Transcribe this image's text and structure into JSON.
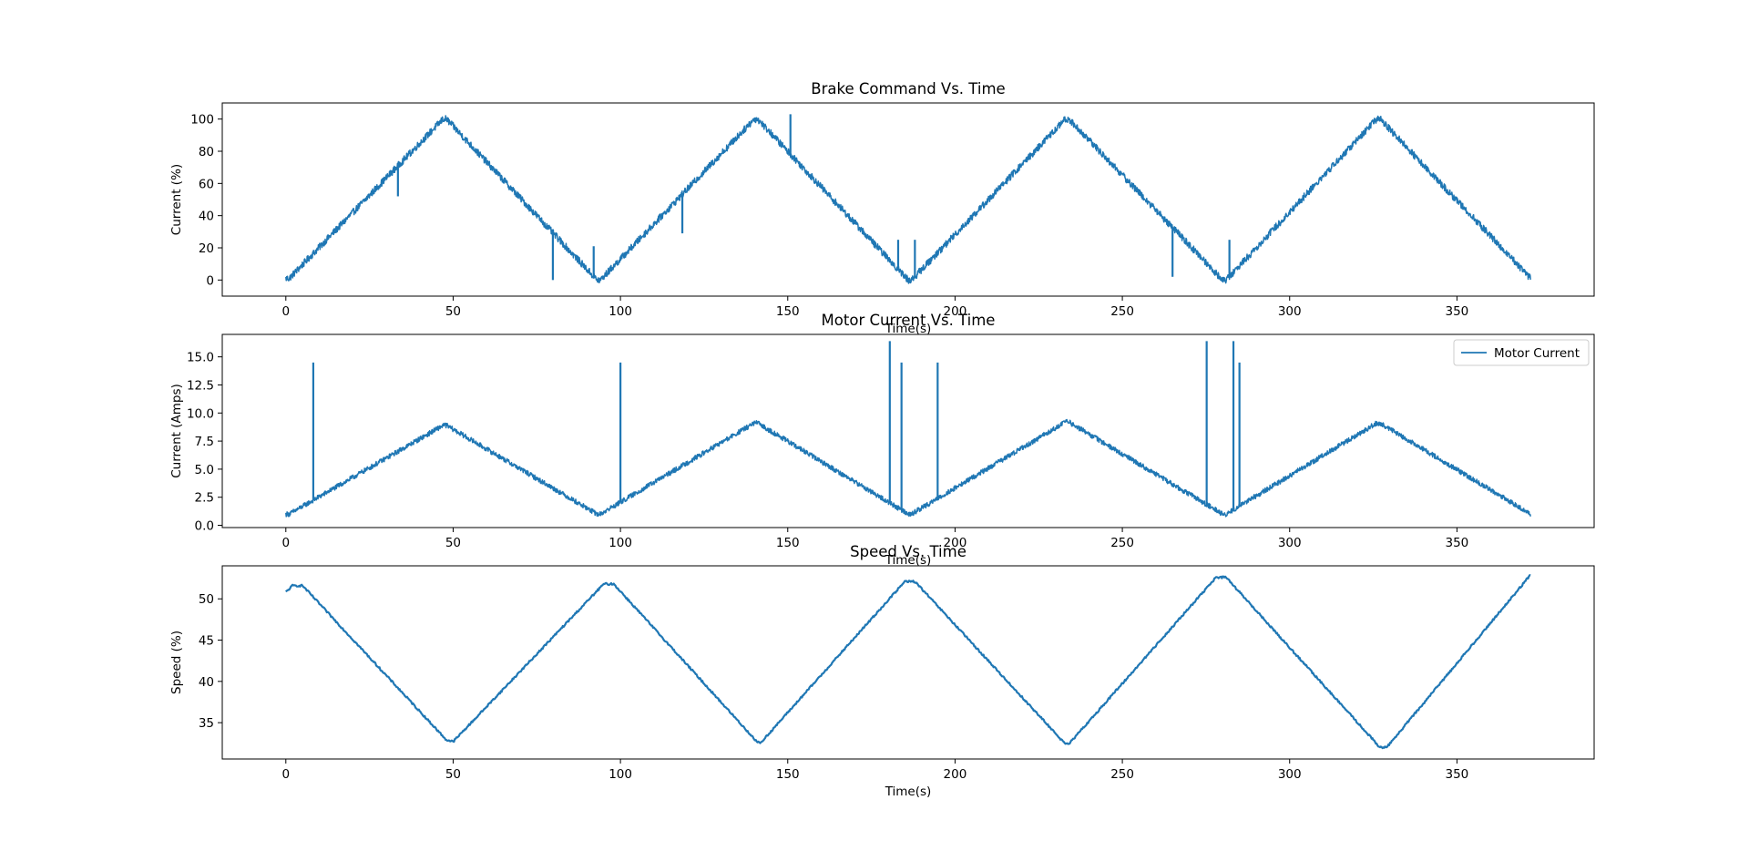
{
  "chart_data": [
    {
      "type": "line",
      "title": "Brake Command Vs. Time",
      "xlabel": "Time(s)",
      "ylabel": "Current (%)",
      "xlim": [
        -19,
        391
      ],
      "ylim": [
        -10,
        110
      ],
      "xticks": [
        0,
        50,
        100,
        150,
        200,
        250,
        300,
        350
      ],
      "yticks": [
        0,
        20,
        40,
        60,
        80,
        100
      ],
      "ytick_labels": [
        "0",
        "20",
        "40",
        "60",
        "80",
        "100"
      ],
      "color": "#1f77b4",
      "series": [
        {
          "x": [
            0,
            1,
            47,
            48,
            93,
            94,
            140,
            141,
            186,
            187,
            233,
            234,
            280,
            281,
            326,
            327,
            372
          ],
          "y": [
            1,
            1,
            100,
            100,
            0,
            0,
            100,
            100,
            0,
            0,
            100,
            100,
            0,
            0,
            100,
            100,
            1
          ],
          "spikes": [
            {
              "x": 33.5,
              "y": 52
            },
            {
              "x": 79.8,
              "y": 0
            },
            {
              "x": 92.0,
              "y": 21
            },
            {
              "x": 118.5,
              "y": 29
            },
            {
              "x": 150.8,
              "y": 103
            },
            {
              "x": 183.0,
              "y": 25
            },
            {
              "x": 188.0,
              "y": 25
            },
            {
              "x": 265.0,
              "y": 2
            },
            {
              "x": 282.0,
              "y": 25
            }
          ]
        }
      ]
    },
    {
      "type": "line",
      "title": "Motor Current Vs. Time",
      "xlabel": "Time(s)",
      "ylabel": "Current (Amps)",
      "xlim": [
        -19,
        391
      ],
      "ylim": [
        -0.2,
        17.0
      ],
      "xticks": [
        0,
        50,
        100,
        150,
        200,
        250,
        300,
        350
      ],
      "yticks": [
        0.0,
        2.5,
        5.0,
        7.5,
        10.0,
        12.5,
        15.0
      ],
      "ytick_labels": [
        "0.0",
        "2.5",
        "5.0",
        "7.5",
        "10.0",
        "12.5",
        "15.0"
      ],
      "legend": {
        "position": "top-right"
      },
      "color": "#1f77b4",
      "series": [
        {
          "name": "Motor Current",
          "x": [
            0,
            1,
            47,
            48,
            93,
            94,
            140,
            141,
            186,
            187,
            233,
            234,
            280,
            281,
            326,
            327,
            372
          ],
          "y": [
            1.0,
            1.0,
            8.9,
            8.9,
            1.0,
            1.0,
            9.1,
            9.1,
            1.0,
            1.0,
            9.2,
            9.2,
            1.0,
            1.0,
            9.1,
            9.1,
            1.0
          ],
          "spikes": [
            {
              "x": 8.2,
              "y": 14.5
            },
            {
              "x": 100.0,
              "y": 14.5
            },
            {
              "x": 180.5,
              "y": 16.4
            },
            {
              "x": 184.0,
              "y": 14.5
            },
            {
              "x": 194.8,
              "y": 14.5
            },
            {
              "x": 275.2,
              "y": 16.4
            },
            {
              "x": 283.2,
              "y": 16.4
            },
            {
              "x": 285.0,
              "y": 14.5
            }
          ]
        }
      ]
    },
    {
      "type": "line",
      "title": "Speed Vs. Time",
      "xlabel": "Time(s)",
      "ylabel": "Speed (%)",
      "xlim": [
        -19,
        391
      ],
      "ylim": [
        30.6,
        54.0
      ],
      "xticks": [
        0,
        50,
        100,
        150,
        200,
        250,
        300,
        350
      ],
      "yticks": [
        35,
        40,
        45,
        50
      ],
      "ytick_labels": [
        "35",
        "40",
        "45",
        "50"
      ],
      "color": "#1f77b4",
      "series": [
        {
          "x": [
            0,
            2,
            5,
            48,
            50,
            95,
            98,
            141,
            142,
            185,
            188,
            233,
            234,
            278,
            281,
            327,
            329,
            372
          ],
          "y": [
            50.8,
            51.6,
            51.6,
            32.9,
            32.7,
            51.8,
            51.8,
            32.6,
            32.6,
            52.1,
            52.1,
            32.4,
            32.4,
            52.6,
            52.6,
            32.0,
            32.0,
            52.9
          ]
        }
      ]
    }
  ]
}
